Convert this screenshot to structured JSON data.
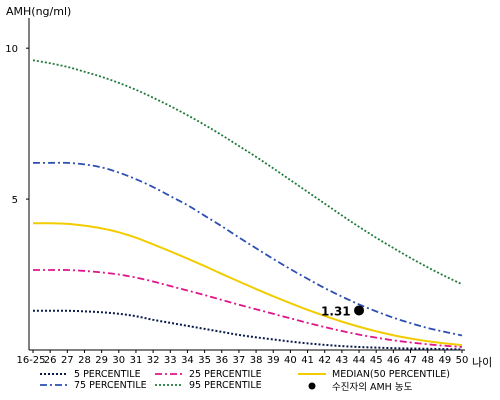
{
  "chart_data": {
    "type": "line",
    "ylabel": "AMH(ng/ml)",
    "xlabel": "나이",
    "ylim": [
      0,
      11
    ],
    "yticks": [
      10,
      5
    ],
    "x_categories": [
      "16-25",
      "26",
      "27",
      "28",
      "29",
      "30",
      "31",
      "32",
      "33",
      "34",
      "35",
      "36",
      "37",
      "38",
      "39",
      "40",
      "41",
      "42",
      "43",
      "44",
      "45",
      "46",
      "47",
      "48",
      "49",
      "50"
    ],
    "series": [
      {
        "name": "5 PERCENTILE",
        "color": "#0a1a4a",
        "dash": "2,2",
        "width": 2,
        "values": [
          1.3,
          1.3,
          1.3,
          1.28,
          1.25,
          1.2,
          1.12,
          1.0,
          0.9,
          0.8,
          0.7,
          0.6,
          0.5,
          0.42,
          0.35,
          0.28,
          0.22,
          0.17,
          0.13,
          0.1,
          0.08,
          0.06,
          0.05,
          0.04,
          0.03,
          0.02
        ]
      },
      {
        "name": "25 PERCENTILE",
        "color": "#e0158a",
        "dash": "7,3,2,3",
        "width": 1.8,
        "values": [
          2.65,
          2.65,
          2.65,
          2.62,
          2.57,
          2.5,
          2.4,
          2.27,
          2.12,
          1.97,
          1.82,
          1.66,
          1.5,
          1.35,
          1.2,
          1.05,
          0.9,
          0.76,
          0.63,
          0.51,
          0.41,
          0.32,
          0.25,
          0.19,
          0.14,
          0.1
        ]
      },
      {
        "name": "MEDIAN(50 PERCENTILE)",
        "color": "#f2cc00",
        "dash": "",
        "width": 2,
        "values": [
          4.2,
          4.2,
          4.18,
          4.12,
          4.03,
          3.9,
          3.72,
          3.5,
          3.27,
          3.03,
          2.78,
          2.52,
          2.27,
          2.02,
          1.78,
          1.55,
          1.33,
          1.13,
          0.94,
          0.77,
          0.62,
          0.49,
          0.38,
          0.29,
          0.22,
          0.16
        ]
      },
      {
        "name": "75 PERCENTILE",
        "color": "#2d4fb0",
        "dash": "7,3,2,3",
        "width": 1.8,
        "values": [
          6.2,
          6.2,
          6.2,
          6.15,
          6.05,
          5.88,
          5.66,
          5.4,
          5.1,
          4.8,
          4.45,
          4.1,
          3.73,
          3.37,
          3.02,
          2.68,
          2.36,
          2.05,
          1.77,
          1.51,
          1.28,
          1.07,
          0.89,
          0.73,
          0.6,
          0.48
        ]
      },
      {
        "name": "95 PERCENTILE",
        "color": "#1f7a3c",
        "dash": "2,2",
        "width": 1.8,
        "values": [
          9.6,
          9.5,
          9.38,
          9.22,
          9.05,
          8.85,
          8.62,
          8.36,
          8.08,
          7.78,
          7.46,
          7.12,
          6.76,
          6.4,
          6.02,
          5.63,
          5.24,
          4.85,
          4.46,
          4.08,
          3.72,
          3.38,
          3.05,
          2.74,
          2.45,
          2.18
        ]
      }
    ],
    "highlight": {
      "name": "수진자의 AMH 농도",
      "x_index": 19,
      "value": 1.31,
      "label": "1.31",
      "color": "#000000"
    },
    "legend_position": "bottom"
  }
}
